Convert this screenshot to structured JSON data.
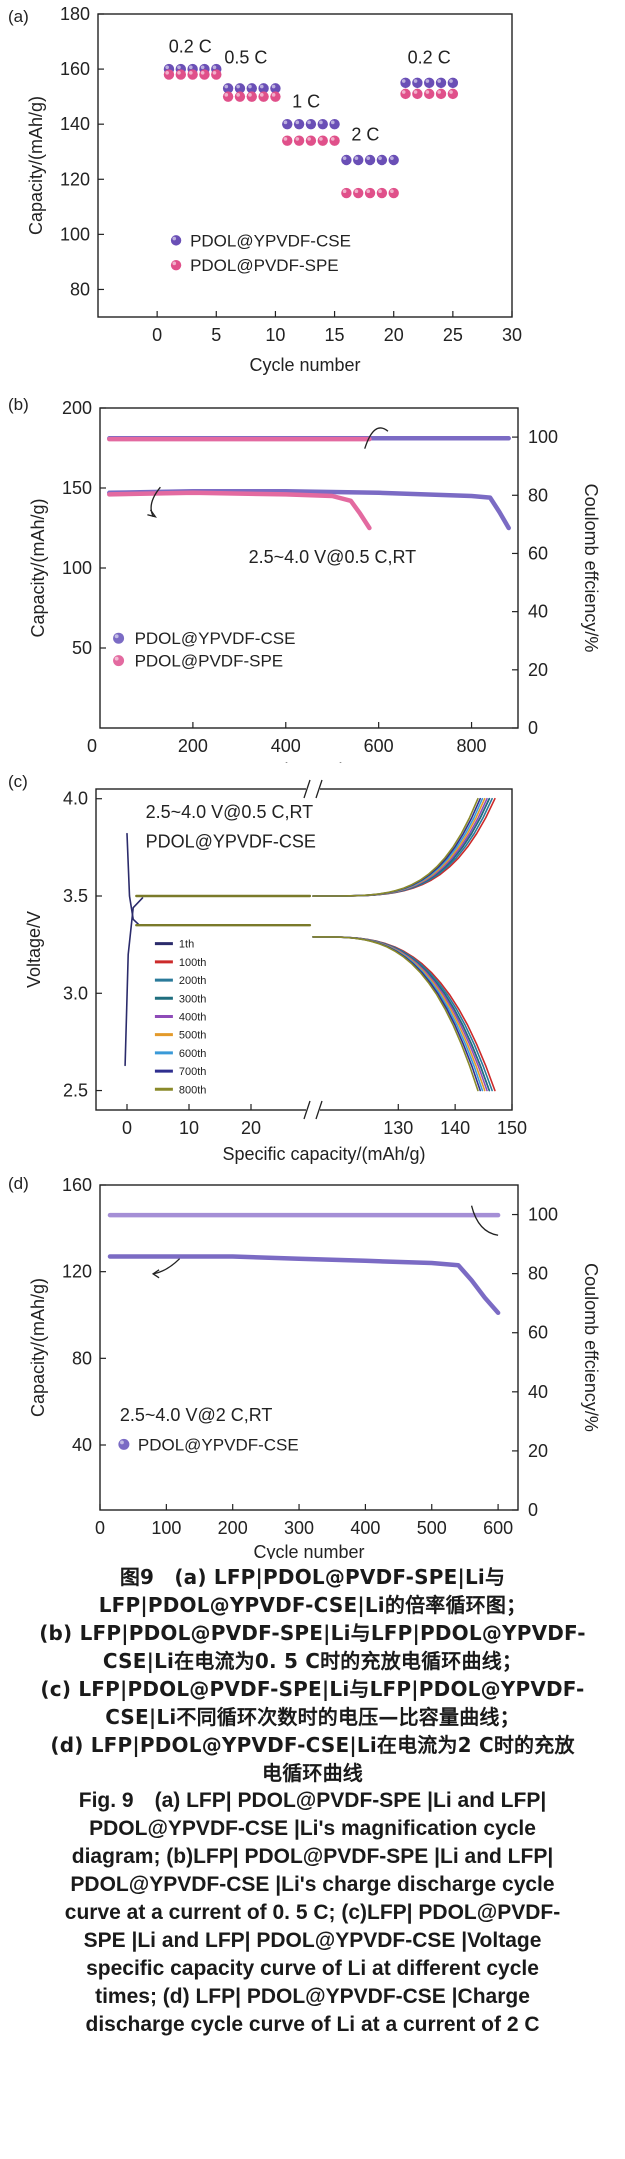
{
  "panel_letters": [
    "(a)",
    "(b)",
    "(c)",
    "(d)"
  ],
  "chart_data": [
    {
      "panel": "(a)",
      "type": "scatter",
      "xlabel": "Cycle number",
      "ylabel": "Capacity/(mAh/g)",
      "xlim": [
        -5,
        30
      ],
      "ylim": [
        70,
        180
      ],
      "xticks": [
        0,
        5,
        10,
        15,
        20,
        25,
        30
      ],
      "yticks": [
        80,
        100,
        120,
        140,
        160,
        180
      ],
      "rate_labels": [
        {
          "text": "0.2 C",
          "x": 2.8,
          "y": 166
        },
        {
          "text": "0.5 C",
          "x": 7.5,
          "y": 162
        },
        {
          "text": "1 C",
          "x": 12.6,
          "y": 146
        },
        {
          "text": "2 C",
          "x": 17.6,
          "y": 134
        },
        {
          "text": "0.2 C",
          "x": 23.0,
          "y": 162
        }
      ],
      "series": [
        {
          "name": "PDOL@YPVDF-CSE",
          "color": "#6a4fb6",
          "values": [
            160,
            160,
            160,
            160,
            160,
            153,
            153,
            153,
            153,
            153,
            140,
            140,
            140,
            140,
            140,
            127,
            127,
            127,
            127,
            127,
            155,
            155,
            155,
            155,
            155
          ]
        },
        {
          "name": "PDOL@PVDF-SPE",
          "color": "#e0508a",
          "values": [
            158,
            158,
            158,
            158,
            158,
            150,
            150,
            150,
            150,
            150,
            134,
            134,
            134,
            134,
            134,
            115,
            115,
            115,
            115,
            115,
            151,
            151,
            151,
            151,
            151
          ]
        }
      ]
    },
    {
      "panel": "(b)",
      "type": "line",
      "xlabel": "Cycle number",
      "ylabel": "Capacity/(mAh/g)",
      "y2label": "Coulomb effciency/%",
      "xlim": [
        0,
        900
      ],
      "ylim": [
        0,
        200
      ],
      "y2lim": [
        0,
        110
      ],
      "xticks": [
        0,
        200,
        400,
        600,
        800
      ],
      "yticks": [
        50,
        100,
        150,
        200
      ],
      "y2ticks": [
        0,
        20,
        40,
        60,
        80,
        100
      ],
      "annotation": "2.5~4.0 V@0.5 C,RT",
      "series": [
        {
          "name": "PDOL@YPVDF-CSE",
          "color": "#7b6bc4",
          "axis": "left",
          "x": [
            20,
            200,
            400,
            600,
            800,
            840,
            860,
            880
          ],
          "y": [
            147,
            148,
            148,
            147,
            145,
            144,
            135,
            125
          ]
        },
        {
          "name": "PDOL@PVDF-SPE",
          "color": "#e36aa0",
          "axis": "left",
          "x": [
            20,
            200,
            400,
            500,
            540,
            560,
            580
          ],
          "y": [
            146,
            147,
            146,
            145,
            142,
            134,
            125
          ]
        },
        {
          "name": "PDOL@YPVDF-CSE CE",
          "color": "#7b6bc4",
          "axis": "right",
          "x": [
            20,
            880
          ],
          "y": [
            99.6,
            99.6
          ]
        },
        {
          "name": "PDOL@PVDF-SPE CE",
          "color": "#e36aa0",
          "axis": "right",
          "x": [
            20,
            580
          ],
          "y": [
            99.3,
            99.3
          ]
        }
      ]
    },
    {
      "panel": "(c)",
      "type": "line",
      "xlabel": "Specific capacity/(mAh/g)",
      "ylabel": "Voltage/V",
      "ylim": [
        2.4,
        4.05
      ],
      "xticks_left": [
        0,
        10,
        20
      ],
      "xticks_right": [
        130,
        140,
        150
      ],
      "yticks": [
        2.5,
        3.0,
        3.5,
        4.0
      ],
      "annotation_line1": "2.5~4.0 V@0.5 C,RT",
      "annotation_line2": "PDOL@YPVDF-CSE",
      "series": [
        {
          "name": "1th",
          "color": "#2b2b6b",
          "end_capacity": 146.0
        },
        {
          "name": "100th",
          "color": "#cc2a2a",
          "end_capacity": 147.0
        },
        {
          "name": "200th",
          "color": "#2a7a9a",
          "end_capacity": 146.5
        },
        {
          "name": "300th",
          "color": "#1f6e7e",
          "end_capacity": 146.0
        },
        {
          "name": "400th",
          "color": "#8e4bb8",
          "end_capacity": 145.6
        },
        {
          "name": "500th",
          "color": "#e39a2a",
          "end_capacity": 145.2
        },
        {
          "name": "600th",
          "color": "#3a9ad8",
          "end_capacity": 144.8
        },
        {
          "name": "700th",
          "color": "#2f2f8f",
          "end_capacity": 144.4
        },
        {
          "name": "800th",
          "color": "#8a8a2a",
          "end_capacity": 144.0
        }
      ]
    },
    {
      "panel": "(d)",
      "type": "line",
      "xlabel": "Cycle number",
      "ylabel": "Capacity/(mAh/g)",
      "y2label": "Coulomb effciency/%",
      "xlim": [
        0,
        630
      ],
      "ylim": [
        10,
        160
      ],
      "y2lim": [
        0,
        110
      ],
      "xticks": [
        0,
        100,
        200,
        300,
        400,
        500,
        600
      ],
      "yticks": [
        40,
        80,
        120,
        160
      ],
      "y2ticks": [
        0,
        20,
        40,
        60,
        80,
        100
      ],
      "annotation": "2.5~4.0 V@2 C,RT",
      "series": [
        {
          "name": "PDOL@YPVDF-CSE",
          "color": "#7b6bc4",
          "axis": "left",
          "x": [
            15,
            100,
            200,
            300,
            400,
            500,
            540,
            560,
            580,
            600
          ],
          "y": [
            127,
            127,
            127,
            126,
            125,
            124,
            123,
            116,
            108,
            101
          ]
        },
        {
          "name": "PDOL@YPVDF-CSE CE",
          "color": "#a58fd6",
          "axis": "right",
          "x": [
            15,
            600
          ],
          "y": [
            99.8,
            99.8
          ]
        }
      ]
    }
  ],
  "caption": {
    "cn_line1": "图9　(a) LFP|PDOL@PVDF-SPE|Li与",
    "cn_line2": "LFP|PDOL@YPVDF-CSE|Li的倍率循环图；",
    "cn_line3": "(b) LFP|PDOL@PVDF-SPE|Li与LFP|PDOL@YPVDF-",
    "cn_line4": "CSE|Li在电流为0. 5 C时的充放电循环曲线；",
    "cn_line5": "(c) LFP|PDOL@PVDF-SPE|Li与LFP|PDOL@YPVDF-",
    "cn_line6": "CSE|Li不同循环次数时的电压—比容量曲线；",
    "cn_line7": "(d) LFP|PDOL@YPVDF-CSE|Li在电流为2 C时的充放",
    "cn_line8": "电循环曲线",
    "en_line1": "Fig. 9　(a) LFP| PDOL@PVDF-SPE |Li and LFP|",
    "en_line2": "PDOL@YPVDF-CSE |Li's magnification cycle",
    "en_line3": "diagram; (b)LFP| PDOL@PVDF-SPE |Li and LFP|",
    "en_line4": "PDOL@YPVDF-CSE |Li's charge discharge cycle",
    "en_line5": "curve at a current of 0. 5 C; (c)LFP| PDOL@PVDF-",
    "en_line6": "SPE |Li and LFP| PDOL@YPVDF-CSE |Voltage",
    "en_line7": "specific capacity curve of Li at different cycle",
    "en_line8": "times; (d) LFP| PDOL@YPVDF-CSE |Charge",
    "en_line9": "discharge cycle curve of Li at a current of 2 C"
  }
}
